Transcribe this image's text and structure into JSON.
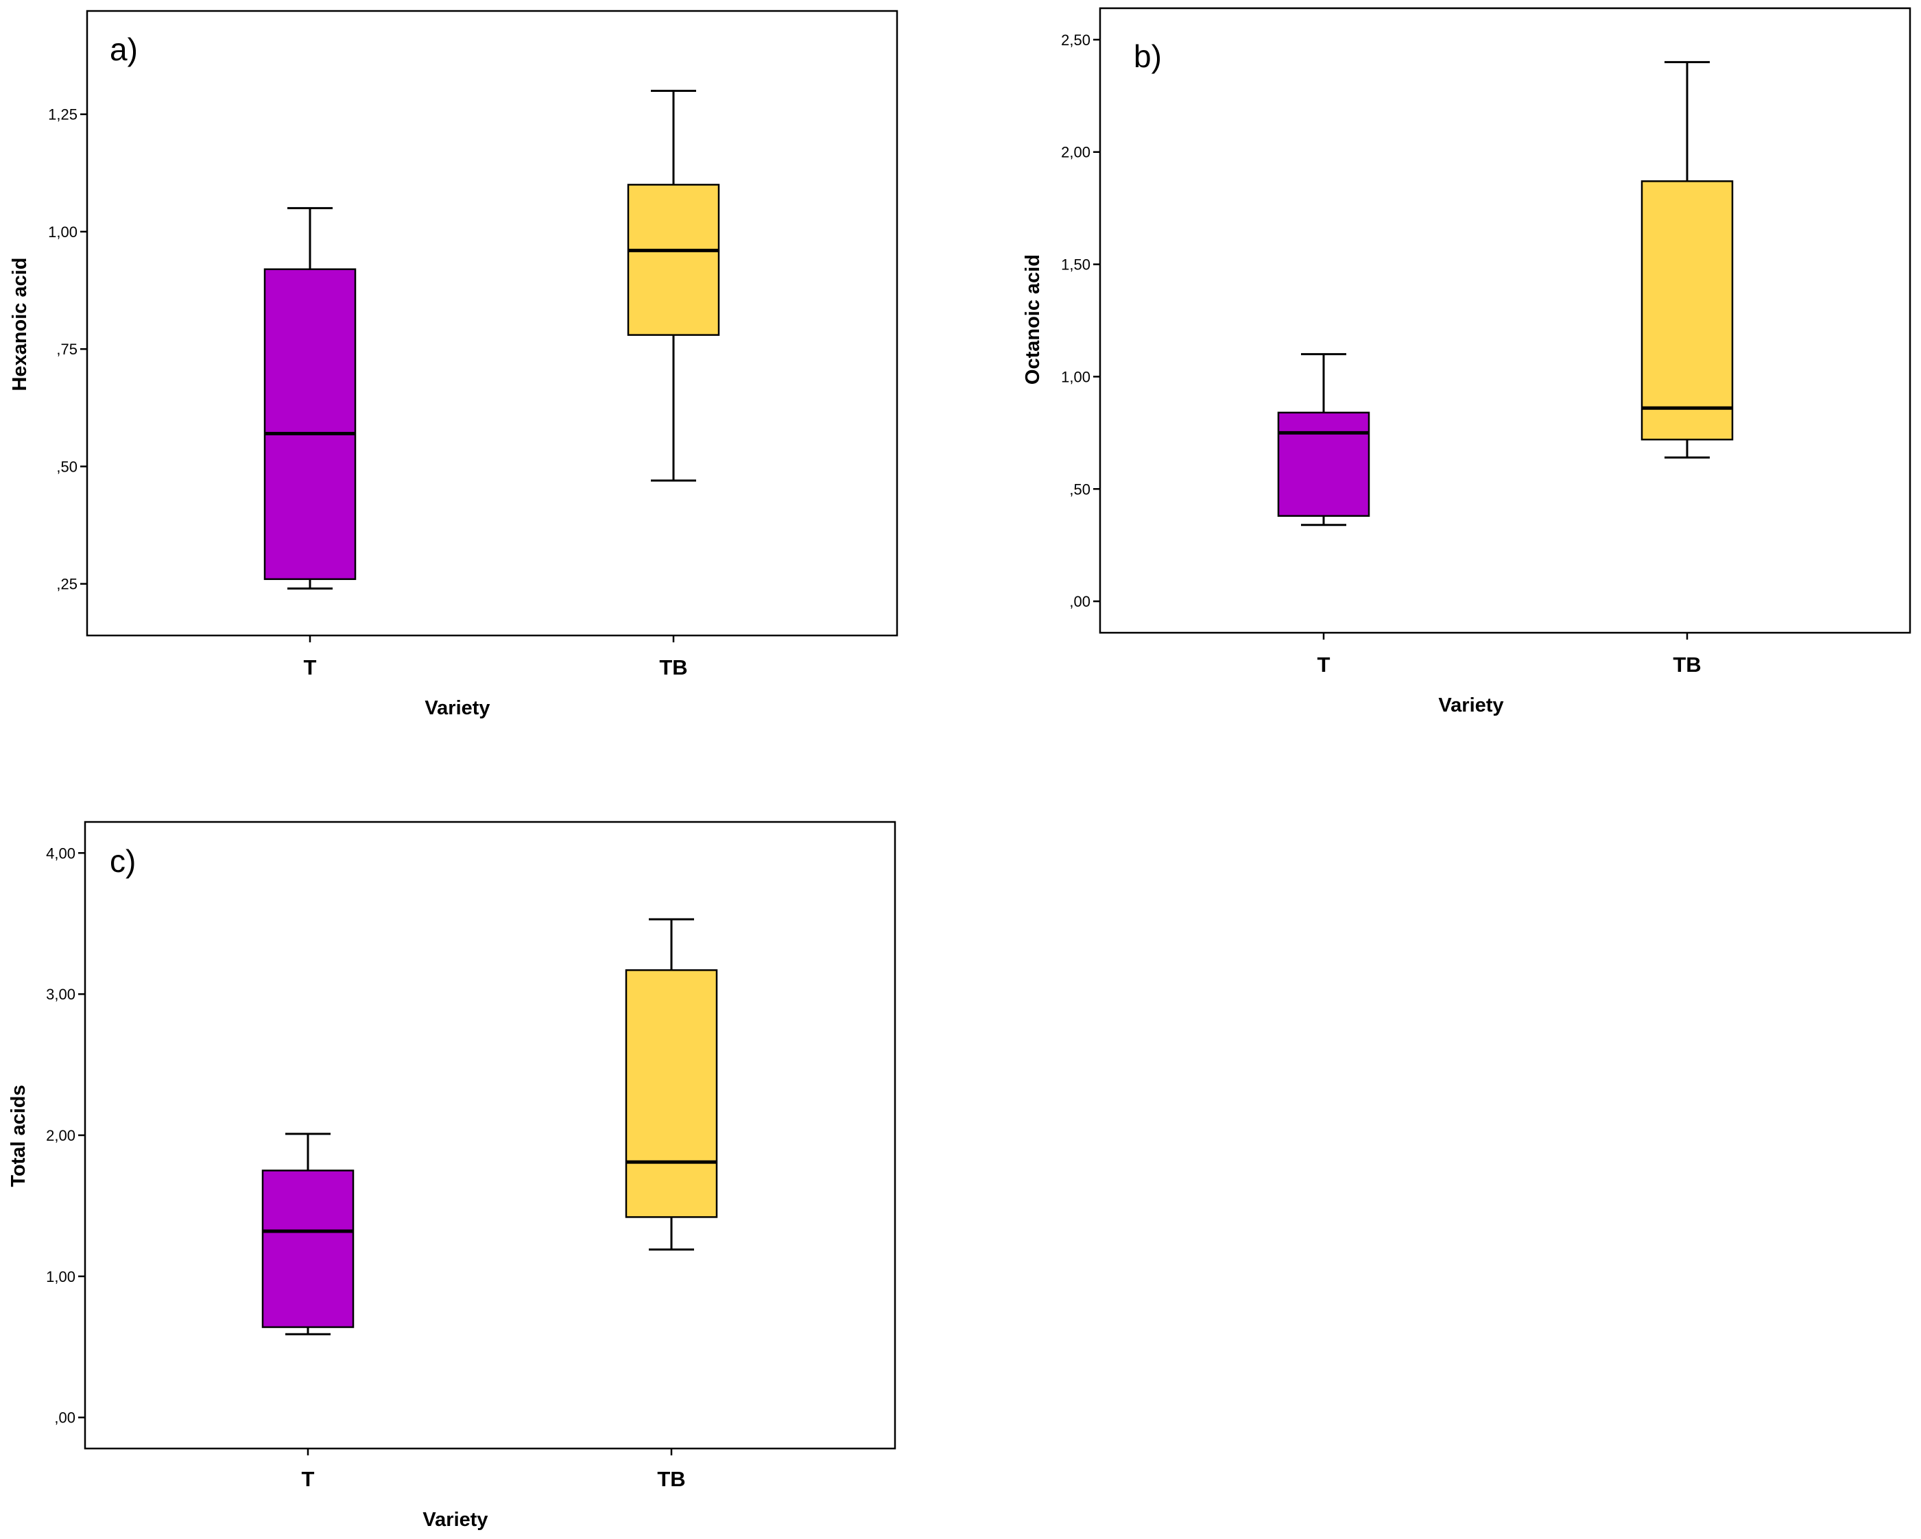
{
  "figure": {
    "colors": {
      "T": "#b000cc",
      "TB": "#ffd750",
      "stroke": "#000000",
      "background": "#ffffff"
    }
  },
  "chart_data": [
    {
      "type": "boxplot",
      "panel_label": "a)",
      "xlabel": "Variety",
      "ylabel": "Hexanoic acid",
      "categories": [
        "T",
        "TB"
      ],
      "ylim": [
        0.14,
        1.47
      ],
      "yticks": [
        0.25,
        0.5,
        0.75,
        1.0,
        1.25
      ],
      "ytick_labels": [
        ",25",
        ",50",
        ",75",
        "1,00",
        "1,25"
      ],
      "boxes": [
        {
          "category": "T",
          "min": 0.24,
          "q1": 0.26,
          "median": 0.57,
          "q3": 0.92,
          "max": 1.05
        },
        {
          "category": "TB",
          "min": 0.47,
          "q1": 0.78,
          "median": 0.96,
          "q3": 1.1,
          "max": 1.3
        }
      ]
    },
    {
      "type": "boxplot",
      "panel_label": "b)",
      "xlabel": "Variety",
      "ylabel": "Octanoic acid",
      "categories": [
        "T",
        "TB"
      ],
      "ylim": [
        -0.14,
        2.64
      ],
      "yticks": [
        0.0,
        0.5,
        1.0,
        1.5,
        2.0,
        2.5
      ],
      "ytick_labels": [
        ",00",
        ",50",
        "1,00",
        "1,50",
        "2,00",
        "2,50"
      ],
      "boxes": [
        {
          "category": "T",
          "min": 0.34,
          "q1": 0.38,
          "median": 0.75,
          "q3": 0.84,
          "max": 1.1
        },
        {
          "category": "TB",
          "min": 0.64,
          "q1": 0.72,
          "median": 0.86,
          "q3": 1.87,
          "max": 2.4
        }
      ]
    },
    {
      "type": "boxplot",
      "panel_label": "c)",
      "xlabel": "Variety",
      "ylabel": "Total acids",
      "categories": [
        "T",
        "TB"
      ],
      "ylim": [
        -0.22,
        4.22
      ],
      "yticks": [
        0.0,
        1.0,
        2.0,
        3.0,
        4.0
      ],
      "ytick_labels": [
        ",00",
        "1,00",
        "2,00",
        "3,00",
        "4,00"
      ],
      "boxes": [
        {
          "category": "T",
          "min": 0.59,
          "q1": 0.64,
          "median": 1.32,
          "q3": 1.75,
          "max": 2.01
        },
        {
          "category": "TB",
          "min": 1.19,
          "q1": 1.42,
          "median": 1.81,
          "q3": 3.17,
          "max": 3.53
        }
      ]
    }
  ]
}
